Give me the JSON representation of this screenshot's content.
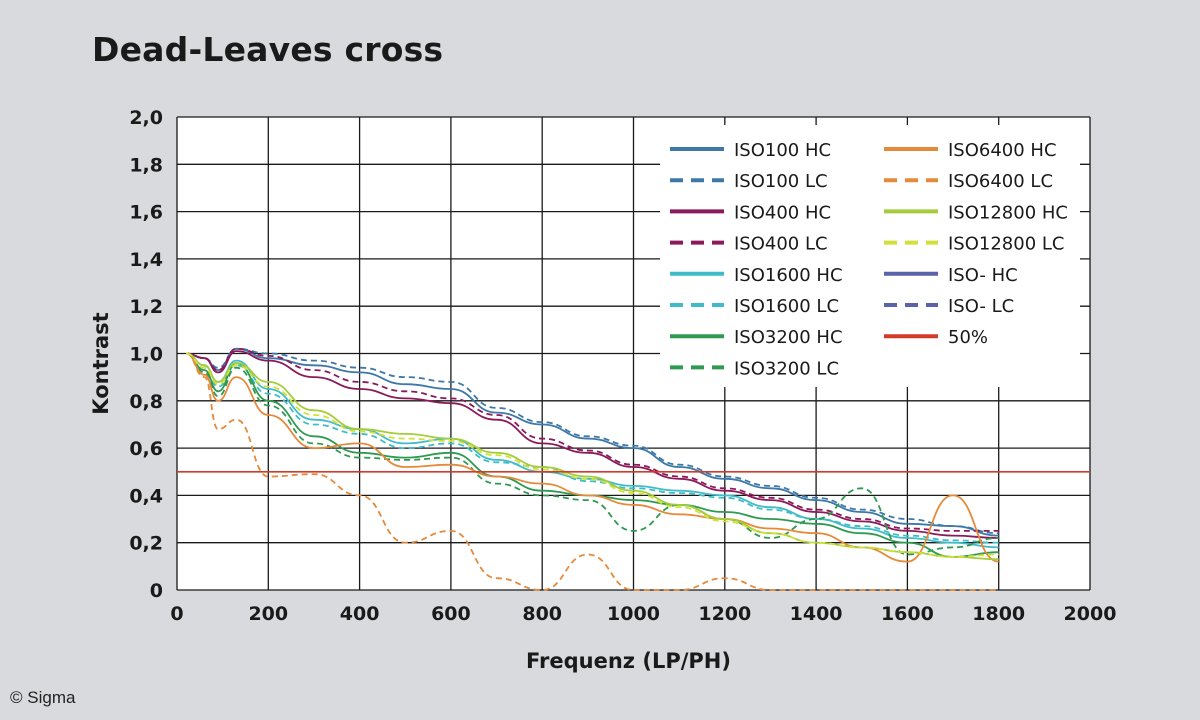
{
  "chart_data": {
    "type": "line",
    "title": "Dead-Leaves cross",
    "xlabel": "Frequenz (LP/PH)",
    "ylabel": "Kontrast",
    "xlim": [
      0,
      2000
    ],
    "ylim": [
      0,
      2.0
    ],
    "x_ticks": [
      "0",
      "200",
      "400",
      "600",
      "800",
      "1000",
      "1200",
      "1400",
      "1600",
      "1800",
      "2000"
    ],
    "y_ticks": [
      "0",
      "0,2",
      "0,4",
      "0,6",
      "0,8",
      "1,0",
      "1,2",
      "1,4",
      "1,6",
      "1,8",
      "2,0"
    ],
    "grid": true,
    "legend_position": "top-right",
    "reference_line": {
      "name": "50%",
      "y": 0.5,
      "color": "#d23a2a"
    },
    "series": [
      {
        "name": "ISO100 HC",
        "style": "solid",
        "color": "#3d78a8",
        "x": [
          20,
          60,
          90,
          130,
          200,
          300,
          400,
          500,
          600,
          700,
          800,
          900,
          1000,
          1100,
          1200,
          1300,
          1400,
          1500,
          1600,
          1700,
          1800
        ],
        "y": [
          1.0,
          0.98,
          0.93,
          1.02,
          0.98,
          0.95,
          0.92,
          0.87,
          0.85,
          0.75,
          0.7,
          0.64,
          0.6,
          0.52,
          0.47,
          0.43,
          0.38,
          0.33,
          0.28,
          0.27,
          0.23
        ]
      },
      {
        "name": "ISO100 LC",
        "style": "dashed",
        "color": "#3d78a8",
        "x": [
          20,
          60,
          90,
          130,
          200,
          300,
          400,
          500,
          600,
          700,
          800,
          900,
          1000,
          1100,
          1200,
          1300,
          1400,
          1500,
          1600,
          1700,
          1800
        ],
        "y": [
          1.0,
          0.98,
          0.94,
          1.02,
          1.0,
          0.97,
          0.94,
          0.9,
          0.88,
          0.77,
          0.71,
          0.65,
          0.61,
          0.53,
          0.48,
          0.44,
          0.39,
          0.34,
          0.3,
          0.27,
          0.24
        ]
      },
      {
        "name": "ISO400 HC",
        "style": "solid",
        "color": "#8a1a5a",
        "x": [
          20,
          60,
          90,
          130,
          200,
          300,
          400,
          500,
          600,
          700,
          800,
          900,
          1000,
          1100,
          1200,
          1300,
          1400,
          1500,
          1600,
          1700,
          1800
        ],
        "y": [
          1.0,
          0.98,
          0.92,
          1.01,
          0.97,
          0.9,
          0.85,
          0.81,
          0.79,
          0.72,
          0.62,
          0.58,
          0.52,
          0.47,
          0.42,
          0.38,
          0.33,
          0.29,
          0.25,
          0.23,
          0.22
        ]
      },
      {
        "name": "ISO400 LC",
        "style": "dashed",
        "color": "#8a1a5a",
        "x": [
          20,
          60,
          90,
          130,
          200,
          300,
          400,
          500,
          600,
          700,
          800,
          900,
          1000,
          1100,
          1200,
          1300,
          1400,
          1500,
          1600,
          1700,
          1800
        ],
        "y": [
          1.0,
          0.98,
          0.93,
          1.02,
          0.99,
          0.93,
          0.88,
          0.84,
          0.81,
          0.74,
          0.64,
          0.59,
          0.53,
          0.48,
          0.43,
          0.39,
          0.34,
          0.3,
          0.26,
          0.25,
          0.25
        ]
      },
      {
        "name": "ISO1600 HC",
        "style": "solid",
        "color": "#3fbcc8",
        "x": [
          20,
          60,
          90,
          130,
          200,
          300,
          400,
          500,
          600,
          700,
          800,
          900,
          1000,
          1100,
          1200,
          1300,
          1400,
          1500,
          1600,
          1700,
          1800
        ],
        "y": [
          1.0,
          0.95,
          0.88,
          0.97,
          0.85,
          0.72,
          0.68,
          0.62,
          0.64,
          0.55,
          0.5,
          0.47,
          0.44,
          0.42,
          0.4,
          0.35,
          0.3,
          0.26,
          0.22,
          0.2,
          0.18
        ]
      },
      {
        "name": "ISO1600 LC",
        "style": "dashed",
        "color": "#3fbcc8",
        "x": [
          20,
          60,
          90,
          130,
          200,
          300,
          400,
          500,
          600,
          700,
          800,
          900,
          1000,
          1100,
          1200,
          1300,
          1400,
          1500,
          1600,
          1700,
          1800
        ],
        "y": [
          1.0,
          0.94,
          0.86,
          0.95,
          0.83,
          0.7,
          0.66,
          0.6,
          0.62,
          0.54,
          0.52,
          0.46,
          0.43,
          0.41,
          0.39,
          0.34,
          0.3,
          0.27,
          0.23,
          0.21,
          0.2
        ]
      },
      {
        "name": "ISO3200 HC",
        "style": "solid",
        "color": "#2e9a50",
        "x": [
          20,
          60,
          90,
          130,
          200,
          300,
          400,
          500,
          600,
          700,
          800,
          900,
          1000,
          1100,
          1200,
          1300,
          1400,
          1500,
          1600,
          1700,
          1800
        ],
        "y": [
          1.0,
          0.93,
          0.84,
          0.96,
          0.8,
          0.65,
          0.58,
          0.56,
          0.58,
          0.48,
          0.42,
          0.4,
          0.38,
          0.36,
          0.33,
          0.3,
          0.28,
          0.24,
          0.2,
          0.14,
          0.16
        ]
      },
      {
        "name": "ISO3200 LC",
        "style": "dashed",
        "color": "#2e9a50",
        "x": [
          20,
          60,
          90,
          130,
          200,
          300,
          400,
          500,
          600,
          700,
          800,
          900,
          1000,
          1100,
          1200,
          1300,
          1400,
          1500,
          1600,
          1700,
          1800
        ],
        "y": [
          1.0,
          0.92,
          0.82,
          0.94,
          0.78,
          0.62,
          0.56,
          0.55,
          0.56,
          0.45,
          0.4,
          0.38,
          0.25,
          0.36,
          0.3,
          0.22,
          0.3,
          0.43,
          0.15,
          0.18,
          0.22
        ]
      },
      {
        "name": "ISO6400 HC",
        "style": "solid",
        "color": "#e48a3a",
        "x": [
          20,
          60,
          90,
          130,
          200,
          300,
          400,
          500,
          600,
          700,
          800,
          900,
          1000,
          1100,
          1200,
          1300,
          1400,
          1500,
          1600,
          1700,
          1800
        ],
        "y": [
          1.0,
          0.91,
          0.8,
          0.9,
          0.74,
          0.6,
          0.62,
          0.52,
          0.53,
          0.48,
          0.45,
          0.4,
          0.36,
          0.32,
          0.3,
          0.26,
          0.24,
          0.18,
          0.12,
          0.4,
          0.12
        ]
      },
      {
        "name": "ISO6400 LC",
        "style": "dashed",
        "color": "#e48a3a",
        "x": [
          20,
          60,
          90,
          130,
          200,
          300,
          400,
          500,
          600,
          700,
          800,
          900,
          1000,
          1100,
          1200,
          1300,
          1400,
          1500,
          1600,
          1700,
          1800
        ],
        "y": [
          1.0,
          0.9,
          0.68,
          0.72,
          0.48,
          0.49,
          0.4,
          0.2,
          0.25,
          0.05,
          0.0,
          0.15,
          0.0,
          0.0,
          0.05,
          0.0,
          0.0,
          0.0,
          0.0,
          0.0,
          0.0
        ]
      },
      {
        "name": "ISO12800 HC",
        "style": "solid",
        "color": "#a5cc3a",
        "x": [
          20,
          60,
          90,
          130,
          200,
          300,
          400,
          500,
          600,
          700,
          800,
          900,
          1000,
          1100,
          1200,
          1300,
          1400,
          1500,
          1600,
          1700,
          1800
        ],
        "y": [
          1.0,
          0.95,
          0.88,
          0.96,
          0.88,
          0.76,
          0.68,
          0.66,
          0.64,
          0.58,
          0.52,
          0.48,
          0.42,
          0.36,
          0.3,
          0.24,
          0.2,
          0.18,
          0.16,
          0.14,
          0.13
        ]
      },
      {
        "name": "ISO12800 LC",
        "style": "dashed",
        "color": "#d2e03a",
        "x": [
          20,
          60,
          90,
          130,
          200,
          300,
          400,
          500,
          600,
          700,
          800,
          900,
          1000,
          1100,
          1200,
          1300,
          1400,
          1500,
          1600,
          1700,
          1800
        ],
        "y": [
          1.0,
          0.94,
          0.87,
          0.95,
          0.86,
          0.74,
          0.67,
          0.64,
          0.63,
          0.57,
          0.51,
          0.47,
          0.41,
          0.35,
          0.29,
          0.24,
          0.2,
          0.18,
          0.16,
          0.14,
          0.15
        ]
      },
      {
        "name": "ISO- HC",
        "style": "solid",
        "color": "#5a62aa",
        "x": [],
        "y": []
      },
      {
        "name": "ISO- LC",
        "style": "dashed",
        "color": "#5a62aa",
        "x": [],
        "y": []
      },
      {
        "name": "50%",
        "style": "solid",
        "color": "#d23a2a",
        "x": [
          0,
          2000
        ],
        "y": [
          0.5,
          0.5
        ]
      }
    ],
    "legend": [
      {
        "label": "ISO100 HC",
        "color": "#3d78a8",
        "style": "solid"
      },
      {
        "label": "ISO100 LC",
        "color": "#3d78a8",
        "style": "dashed"
      },
      {
        "label": "ISO400 HC",
        "color": "#8a1a5a",
        "style": "solid"
      },
      {
        "label": "ISO400 LC",
        "color": "#8a1a5a",
        "style": "dashed"
      },
      {
        "label": "ISO1600 HC",
        "color": "#3fbcc8",
        "style": "solid"
      },
      {
        "label": "ISO1600 LC",
        "color": "#3fbcc8",
        "style": "dashed"
      },
      {
        "label": "ISO3200 HC",
        "color": "#2e9a50",
        "style": "solid"
      },
      {
        "label": "ISO3200 LC",
        "color": "#2e9a50",
        "style": "dashed"
      },
      {
        "label": "ISO6400 HC",
        "color": "#e48a3a",
        "style": "solid"
      },
      {
        "label": "ISO6400 LC",
        "color": "#e48a3a",
        "style": "dashed"
      },
      {
        "label": "ISO12800 HC",
        "color": "#a5cc3a",
        "style": "solid"
      },
      {
        "label": "ISO12800 LC",
        "color": "#d2e03a",
        "style": "dashed"
      },
      {
        "label": "ISO- HC",
        "color": "#5a62aa",
        "style": "solid"
      },
      {
        "label": "ISO- LC",
        "color": "#5a62aa",
        "style": "dashed"
      },
      {
        "label": "50%",
        "color": "#d23a2a",
        "style": "solid"
      }
    ]
  },
  "credit": "© Sigma"
}
